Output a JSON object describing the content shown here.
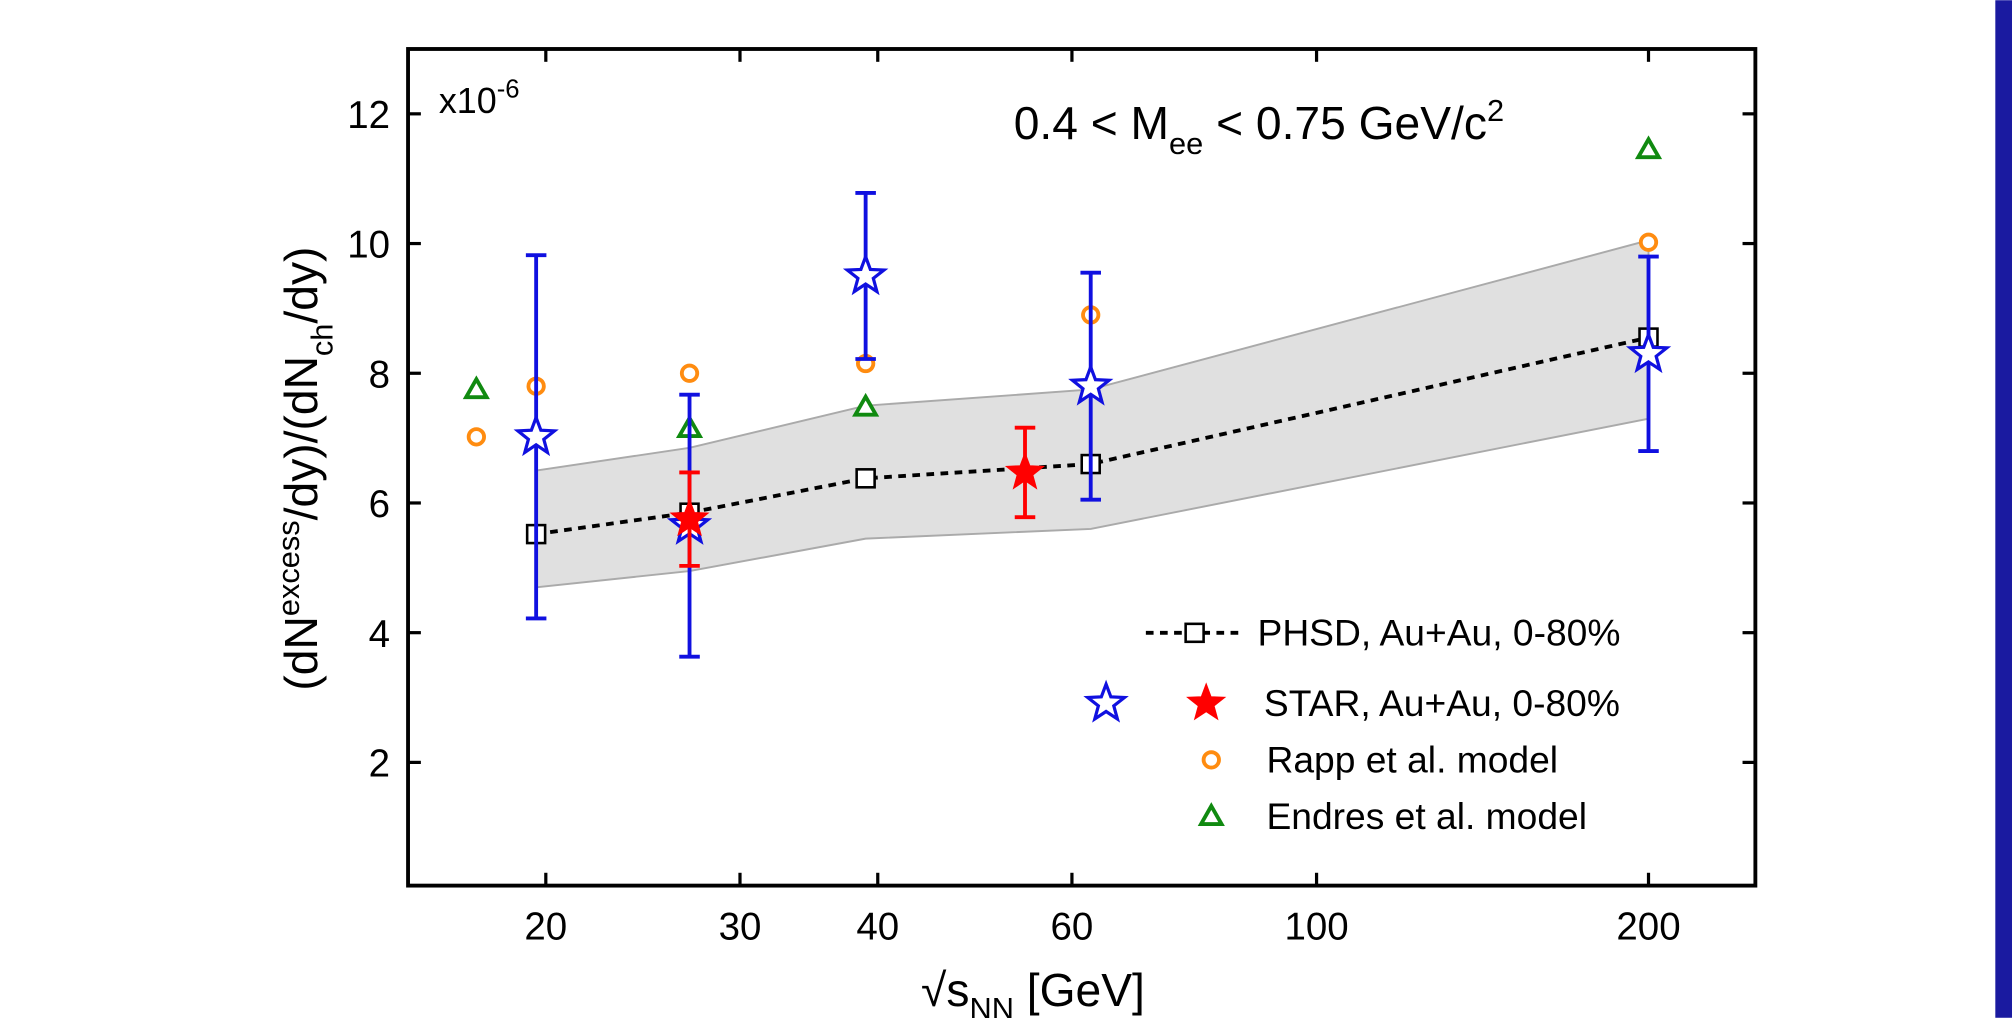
{
  "chart_data": {
    "type": "scatter",
    "ylabel_parts": [
      "(dN",
      "excess",
      "/dy)/(dN",
      "ch",
      "/dy)"
    ],
    "xlabel_parts": [
      "√s",
      "NN",
      " [GeV]"
    ],
    "multiplier_parts": [
      "x10",
      "-6"
    ],
    "annotation_parts": [
      "0.4 < M",
      "ee",
      " < 0.75 GeV/c",
      "2"
    ],
    "xlim": [
      15,
      250
    ],
    "log_x": true,
    "xticks": [
      20,
      30,
      40,
      60,
      100,
      200
    ],
    "ylim": [
      0.1,
      13
    ],
    "yticks": [
      2,
      4,
      6,
      8,
      10,
      12
    ],
    "band": {
      "color": "#e0e0e0",
      "x": [
        19.6,
        27,
        39,
        62.4,
        200
      ],
      "upper": [
        6.5,
        6.85,
        7.5,
        7.75,
        10.05
      ],
      "lower": [
        4.7,
        4.95,
        5.45,
        5.6,
        7.3
      ]
    },
    "series": [
      {
        "name": "PHSD, Au+Au, 0-80%",
        "color": "#000000",
        "marker": "square",
        "line": true,
        "x": [
          19.6,
          27,
          39,
          62.4,
          200
        ],
        "values": [
          5.52,
          5.85,
          6.38,
          6.6,
          8.55
        ]
      },
      {
        "name": "STAR, Au+Au, 0-80%",
        "color": "#1010e0",
        "marker": "open-star",
        "x": [
          19.6,
          27,
          39,
          62.4,
          200
        ],
        "values": [
          7.02,
          5.65,
          9.5,
          7.8,
          8.3
        ],
        "errors": [
          2.8,
          2.02,
          1.28,
          1.75,
          1.5
        ]
      },
      {
        "color": "#ff0000",
        "marker": "filled-star",
        "x": [
          27,
          54.4
        ],
        "values": [
          5.75,
          6.47
        ],
        "errors": [
          0.72,
          0.69
        ]
      },
      {
        "name": "Rapp et al. model",
        "color": "#ff8c10",
        "marker": "circle",
        "x": [
          17.3,
          19.6,
          27,
          39,
          62.4,
          200
        ],
        "values": [
          7.02,
          7.8,
          8.0,
          8.15,
          8.9,
          10.02
        ]
      },
      {
        "name": "Endres et al. model",
        "color": "#108a10",
        "marker": "triangle",
        "x": [
          17.3,
          27,
          39,
          200
        ],
        "values": [
          7.75,
          7.15,
          7.48,
          11.45
        ]
      }
    ]
  }
}
